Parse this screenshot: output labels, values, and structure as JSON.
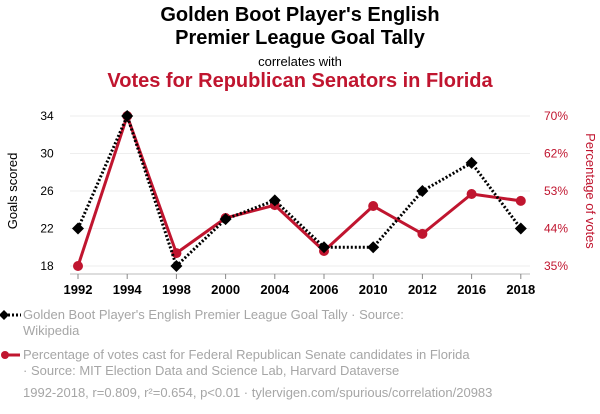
{
  "header": {
    "title_line1": "Golden Boot Player's English",
    "title_line2": "Premier League Goal Tally",
    "correlates": "correlates with",
    "subtitle": "Votes for Republican Senators in Florida"
  },
  "colors": {
    "series1": "#000000",
    "series2": "#c0152f",
    "muted": "#a6a6a6",
    "grid": "#eeeeee"
  },
  "legend": {
    "series1_line1": "Golden Boot Player's English Premier League Goal Tally · Source:",
    "series1_line2": "Wikipedia",
    "series2_line1": "Percentage of votes cast for Federal Republican Senate candidates in Florida",
    "series2_line2": "· Source: MIT Election Data and Science Lab, Harvard Dataverse"
  },
  "footer": "1992-2018, r=0.809, r²=0.654, p<0.01 · tylervigen.com/spurious/correlation/20983",
  "chart_data": {
    "type": "line",
    "title": "Golden Boot Player's English Premier League Goal Tally correlates with Votes for Republican Senators in Florida",
    "categories": [
      "1992",
      "1994",
      "1998",
      "2000",
      "2004",
      "2006",
      "2010",
      "2012",
      "2016",
      "2018"
    ],
    "ylabel_left": "Goals scored",
    "ylabel_right": "Percentage of votes",
    "yticks_left": [
      "18",
      "22",
      "26",
      "30",
      "34"
    ],
    "yticks_right": [
      "35%",
      "44%",
      "53%",
      "62%",
      "70%"
    ],
    "ylim_left": [
      18,
      34
    ],
    "ylim_right": [
      35,
      70
    ],
    "grid": true,
    "series": [
      {
        "name": "Golden Boot Player's English Premier League Goal Tally",
        "axis": "left",
        "style": "dotted-diamond",
        "values": [
          22,
          34,
          18,
          23,
          25,
          20,
          20,
          26,
          29,
          22
        ]
      },
      {
        "name": "Percentage of votes cast for Federal Republican Senate candidates in Florida",
        "axis": "right",
        "style": "solid-circle",
        "values": [
          35.0,
          70.0,
          38.0,
          46.2,
          49.2,
          38.5,
          49.0,
          42.5,
          51.8,
          50.2
        ]
      }
    ]
  }
}
